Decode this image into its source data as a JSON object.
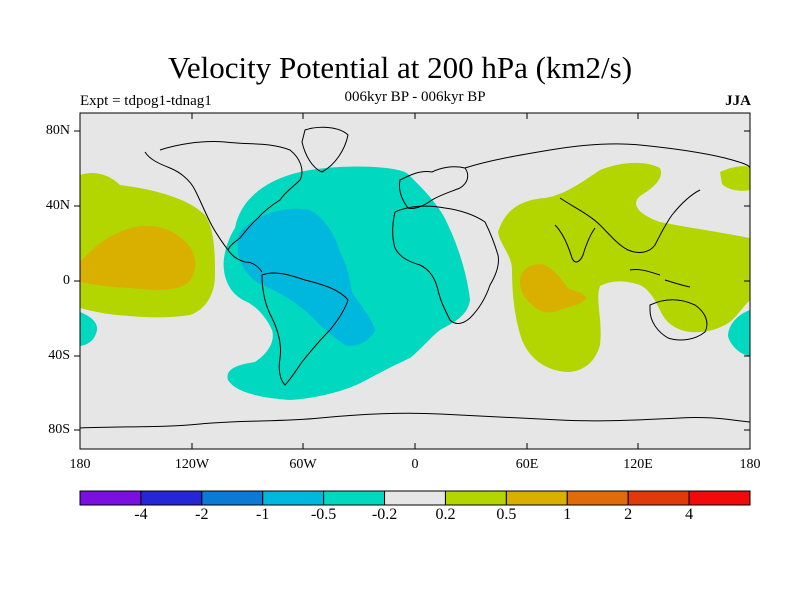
{
  "title": "Velocity Potential at 200 hPa (km2/s)",
  "subtitle": "006kyr BP - 006kyr BP",
  "left_label": "Expt = tdpog1-tdnag1",
  "right_label": "JJA",
  "lat_ticks": [
    "80N",
    "40N",
    "0",
    "40S",
    "80S"
  ],
  "lon_ticks": [
    "180",
    "120W",
    "60W",
    "0",
    "60E",
    "120E",
    "180"
  ],
  "colorbar": {
    "colors": [
      "#7a0fe0",
      "#2626d9",
      "#0a7ad6",
      "#00b8de",
      "#00d9bf",
      "#e6e6e6",
      "#b3d600",
      "#d9b000",
      "#e06b0a",
      "#e03a0a",
      "#f00a0a"
    ],
    "labels": [
      "-4",
      "-2",
      "-1",
      "-0.5",
      "-0.2",
      "0.2",
      "0.5",
      "1",
      "2",
      "4"
    ]
  }
}
